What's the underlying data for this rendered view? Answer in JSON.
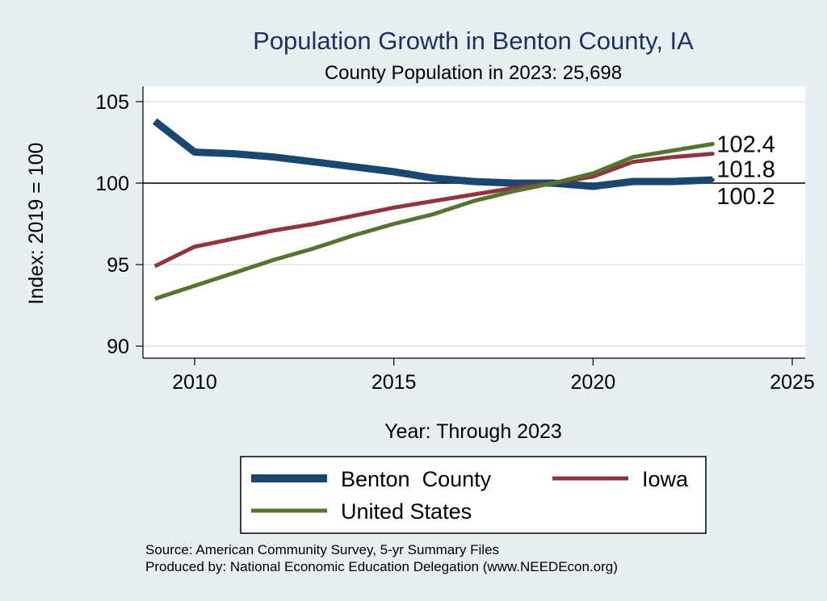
{
  "chart_data": {
    "type": "line",
    "title": "Population Growth in Benton County, IA",
    "subtitle": "County Population in 2023: 25,698",
    "xlabel": "Year: Through 2023",
    "ylabel": "Index: 2019 = 100",
    "xlim": [
      2009,
      2025
    ],
    "ylim": [
      90,
      105
    ],
    "xticks": [
      2010,
      2015,
      2020,
      2025
    ],
    "yticks": [
      90,
      95,
      100,
      105
    ],
    "reference_line": 100,
    "x": [
      2009,
      2010,
      2011,
      2012,
      2013,
      2014,
      2015,
      2016,
      2017,
      2018,
      2019,
      2020,
      2021,
      2022,
      2023
    ],
    "series": [
      {
        "name": "Benton  County",
        "color": "#1a476f",
        "values": [
          103.8,
          101.9,
          101.8,
          101.6,
          101.3,
          101.0,
          100.7,
          100.3,
          100.1,
          100.0,
          100.0,
          99.8,
          100.1,
          100.1,
          100.2
        ],
        "end_label": "100.2"
      },
      {
        "name": "Iowa",
        "color": "#90353b",
        "values": [
          94.9,
          96.1,
          96.6,
          97.1,
          97.5,
          98.0,
          98.5,
          98.9,
          99.3,
          99.7,
          100.0,
          100.4,
          101.3,
          101.6,
          101.8
        ],
        "end_label": "101.8"
      },
      {
        "name": "United States",
        "color": "#55752f",
        "values": [
          92.9,
          93.7,
          94.5,
          95.3,
          96.0,
          96.8,
          97.5,
          98.1,
          98.9,
          99.5,
          100.0,
          100.6,
          101.6,
          102.0,
          102.4
        ],
        "end_label": "102.4"
      }
    ]
  },
  "footer": {
    "source": "Source: American Community Survey, 5-yr Summary Files",
    "produced": "Produced by: National Economic Education Delegation (www.NEEDEcon.org)"
  }
}
